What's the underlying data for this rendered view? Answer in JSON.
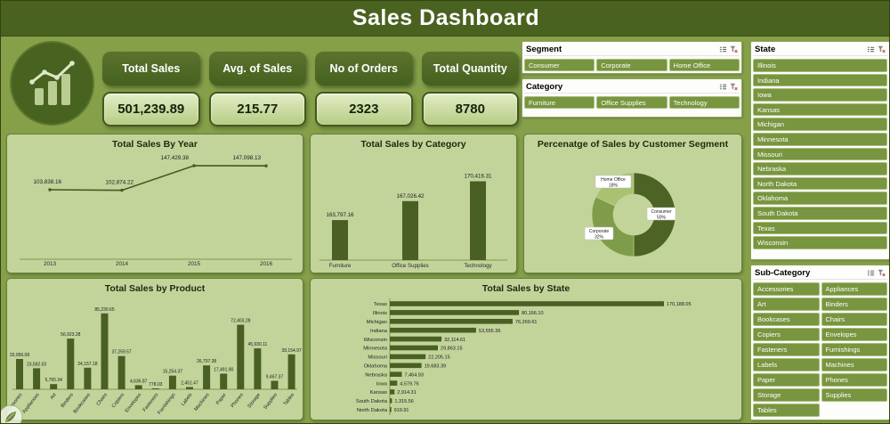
{
  "colors": {
    "background": "#85a049",
    "header_bar": "#4a6220",
    "kpi_button": "#4d6624",
    "kpi_value_bg": "#cfe0a6",
    "panel_bg": "#c3d49b",
    "panel_border": "#64803a",
    "bar": "#4a5f24",
    "slicer_item": "#78953f",
    "donut_colors": [
      "#4c6323",
      "#7f9c4a",
      "#a9c271"
    ]
  },
  "header": {
    "title": "Sales Dashboard"
  },
  "icons": [
    "bar-chart-trend-icon",
    "multiselect-icon",
    "clear-filter-icon",
    "leaf-watermark-icon"
  ],
  "kpis": [
    {
      "label": "Total Sales",
      "value": "501,239.89"
    },
    {
      "label": "Avg. of Sales",
      "value": "215.77"
    },
    {
      "label": "No of Orders",
      "value": "2323"
    },
    {
      "label": "Total Quantity",
      "value": "8780"
    }
  ],
  "slicers": {
    "segment": {
      "title": "Segment",
      "items": [
        "Consumer",
        "Corporate",
        "Home Office"
      ]
    },
    "category": {
      "title": "Category",
      "items": [
        "Furniture",
        "Office Supplies",
        "Technology"
      ]
    },
    "state": {
      "title": "State",
      "items": [
        "Illinois",
        "Indiana",
        "Iowa",
        "Kansas",
        "Michigan",
        "Minnesota",
        "Missouri",
        "Nebraska",
        "North Dakota",
        "Oklahoma",
        "South Dakota",
        "Texas",
        "Wisconsin"
      ]
    },
    "subcategory": {
      "title": "Sub-Category",
      "items": [
        "Accessories",
        "Appliances",
        "Art",
        "Binders",
        "Bookcases",
        "Chairs",
        "Copiers",
        "Envelopes",
        "Fasteners",
        "Furnishings",
        "Labels",
        "Machines",
        "Paper",
        "Phones",
        "Storage",
        "Supplies",
        "Tables"
      ]
    }
  },
  "chart_data": [
    {
      "type": "line",
      "title": "Total Sales By Year",
      "categories": [
        "2013",
        "2014",
        "2015",
        "2016"
      ],
      "values": [
        103838.16,
        102874.22,
        147429.38,
        147098.13
      ],
      "value_labels": [
        "103,838.16",
        "102,874.22",
        "147,429.38",
        "147,098.13"
      ],
      "ylim": [
        100000,
        160000
      ],
      "grid": false,
      "legend": "none"
    },
    {
      "type": "bar",
      "title": "Total Sales by Category",
      "categories": [
        "Furniture",
        "Office Supplies",
        "Technology"
      ],
      "values": [
        163797.16,
        167026.42,
        170416.31
      ],
      "value_labels": [
        "163,797.16",
        "167,026.42",
        "170,416.31"
      ],
      "ylim": [
        157000,
        172000
      ],
      "grid": false,
      "legend": "none"
    },
    {
      "type": "pie",
      "title": "Percenatge of Sales by Customer Segment",
      "categories": [
        "Consumer",
        "Corporate",
        "Home Office"
      ],
      "values": [
        50,
        32,
        18
      ],
      "value_labels": [
        "50%",
        "32%",
        "18%"
      ],
      "donut": true,
      "legend": "none"
    },
    {
      "type": "bar",
      "title": "Total Sales by Product",
      "categories": [
        "Accessories",
        "Appliances",
        "Art",
        "Binders",
        "Bookcases",
        "Chairs",
        "Copiers",
        "Envelopes",
        "Fasteners",
        "Furnishings",
        "Labels",
        "Machines",
        "Paper",
        "Phones",
        "Storage",
        "Supplies",
        "Tables"
      ],
      "values": [
        33956.08,
        23582.03,
        5765.34,
        56923.28,
        24157.18,
        85230.65,
        37259.57,
        4636.87,
        778.03,
        15254.37,
        2451.47,
        26797.38,
        17491.9,
        72403.28,
        45930.11,
        9467.37,
        39154.97
      ],
      "value_labels": [
        "33,956.08",
        "23,582.03",
        "5,765.34",
        "56,923.28",
        "24,157.18",
        "85,230.65",
        "37,259.57",
        "4,636.87",
        "778.03",
        "15,254.37",
        "2,451.47",
        "26,797.38",
        "17,491.90",
        "72,403.28",
        "45,930.11",
        "9,467.37",
        "39,154.97"
      ],
      "ylim": [
        0,
        90000
      ],
      "grid": false,
      "legend": "none"
    },
    {
      "type": "bar-horizontal",
      "title": "Total Sales by State",
      "categories": [
        "Texas",
        "Illinois",
        "Michigan",
        "Indiana",
        "Wisconsin",
        "Minnesota",
        "Missouri",
        "Oklahoma",
        "Nebraska",
        "Iowa",
        "Kansas",
        "South Dakota",
        "North Dakota"
      ],
      "values": [
        170188.05,
        80166.1,
        76269.61,
        53555.36,
        32114.61,
        29863.15,
        22205.15,
        19683.39,
        7464.93,
        4579.76,
        2914.31,
        1315.56,
        919.91
      ],
      "value_labels": [
        "170,188.05",
        "80,166.10",
        "76,269.61",
        "53,555.36",
        "32,114.61",
        "29,863.15",
        "22,205.15",
        "19,683.39",
        "7,464.93",
        "4,579.76",
        "2,914.31",
        "1,315.56",
        "919.91"
      ],
      "xlim": [
        0,
        180000
      ],
      "grid": false,
      "legend": "none"
    }
  ]
}
